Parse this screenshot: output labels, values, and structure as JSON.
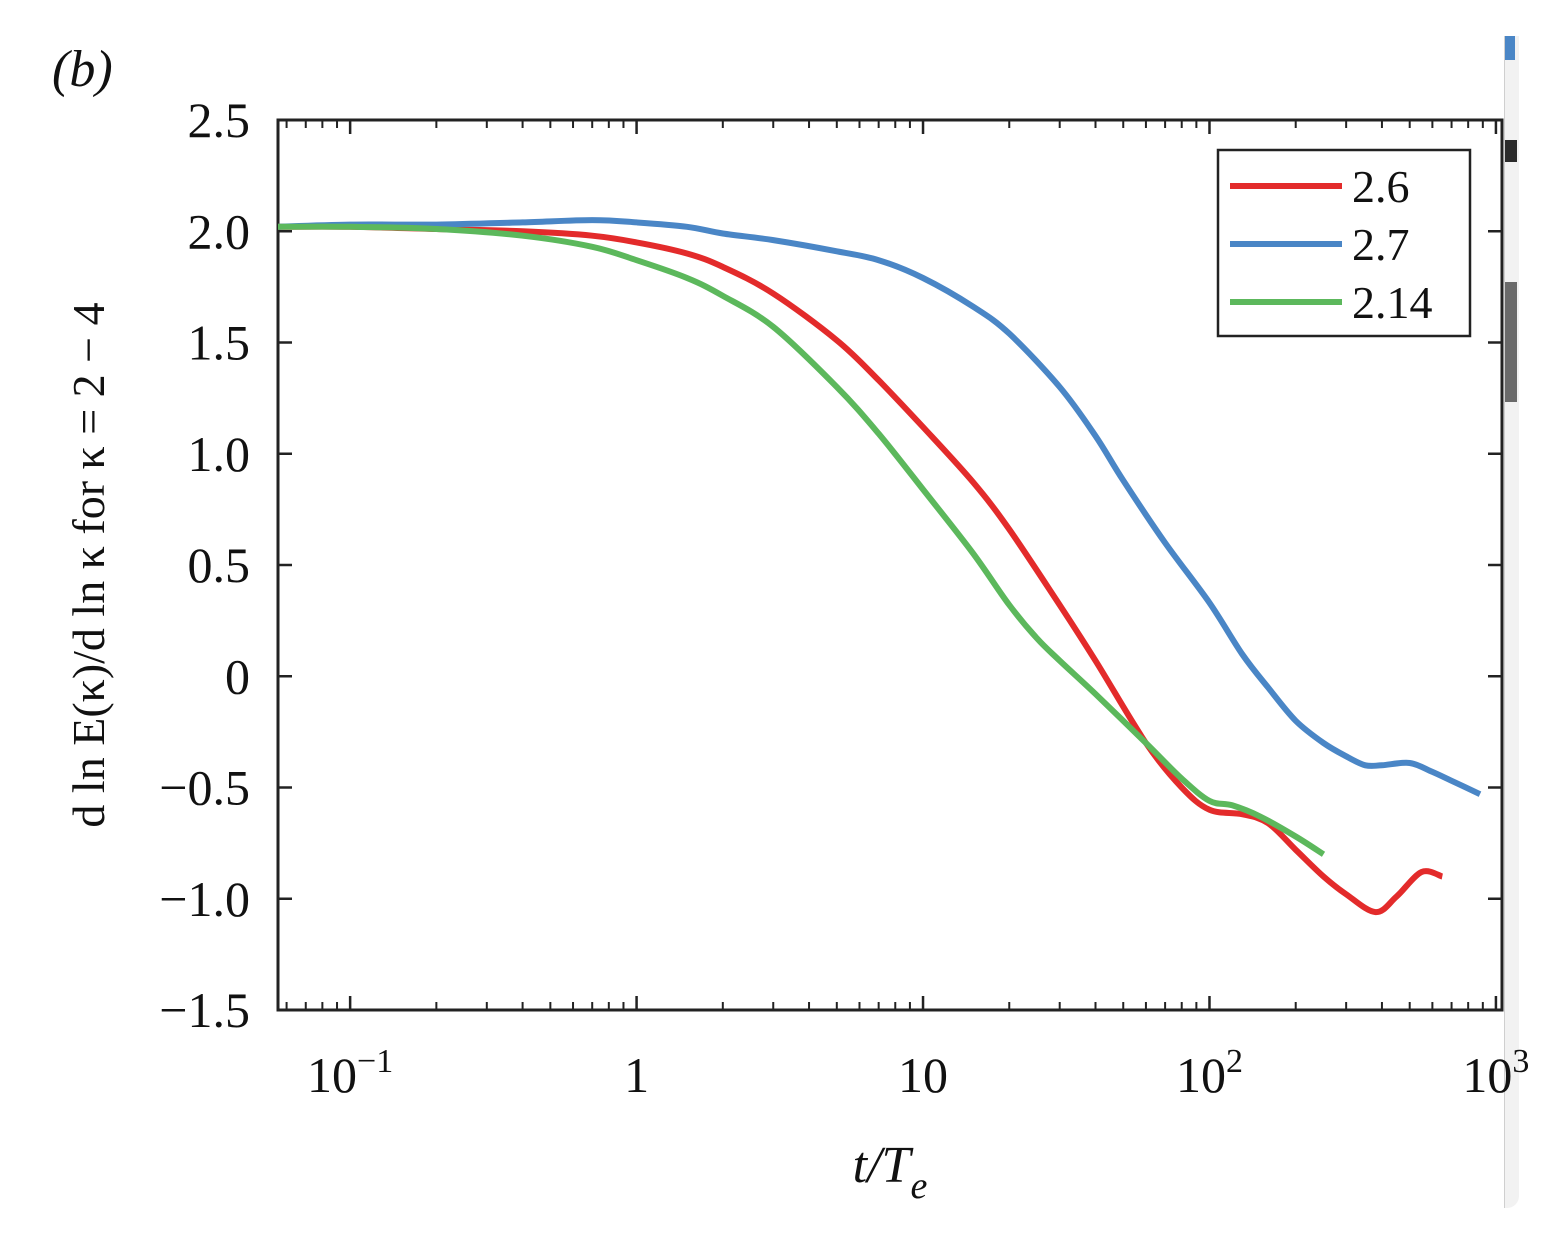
{
  "panel_label": "(b)",
  "colors": {
    "axis": "#222222",
    "series_2_6": "#e32b2b",
    "series_2_7": "#4a86c6",
    "series_2_14": "#5cb85c"
  },
  "chart_data": {
    "type": "line",
    "title": "",
    "xlabel": "t/T_e",
    "ylabel": "d ln E(κ)/d ln κ for κ = 2 − 4",
    "x_scale": "log",
    "xlim": [
      0.056,
      1050
    ],
    "ylim": [
      -1.5,
      2.5
    ],
    "x_ticks": [
      {
        "value": 0.1,
        "base": "10",
        "exp": "−1"
      },
      {
        "value": 1,
        "base": "1",
        "exp": ""
      },
      {
        "value": 10,
        "base": "10",
        "exp": ""
      },
      {
        "value": 100,
        "base": "10",
        "exp": "2"
      },
      {
        "value": 1000,
        "base": "10",
        "exp": "3"
      }
    ],
    "y_ticks": [
      {
        "value": 2.5,
        "label": "2.5"
      },
      {
        "value": 2.0,
        "label": "2.0"
      },
      {
        "value": 1.5,
        "label": "1.5"
      },
      {
        "value": 1.0,
        "label": "1.0"
      },
      {
        "value": 0.5,
        "label": "0.5"
      },
      {
        "value": 0,
        "label": "0"
      },
      {
        "value": -0.5,
        "label": "−0.5"
      },
      {
        "value": -1.0,
        "label": "−1.0"
      },
      {
        "value": -1.5,
        "label": "−1.5"
      }
    ],
    "grid": false,
    "legend_position": "top-right",
    "series": [
      {
        "name": "2.6",
        "color": "#e32b2b",
        "x": [
          0.056,
          0.1,
          0.2,
          0.4,
          0.7,
          1,
          1.5,
          2,
          3,
          5,
          7,
          10,
          15,
          20,
          30,
          40,
          60,
          80,
          100,
          130,
          160,
          200,
          250,
          300,
          380,
          450,
          550,
          650
        ],
        "y": [
          2.02,
          2.02,
          2.01,
          2.0,
          1.98,
          1.95,
          1.9,
          1.84,
          1.72,
          1.51,
          1.33,
          1.12,
          0.87,
          0.66,
          0.32,
          0.07,
          -0.3,
          -0.5,
          -0.6,
          -0.62,
          -0.66,
          -0.78,
          -0.9,
          -0.98,
          -1.06,
          -0.99,
          -0.88,
          -0.9
        ]
      },
      {
        "name": "2.7",
        "color": "#4a86c6",
        "x": [
          0.056,
          0.1,
          0.2,
          0.4,
          0.7,
          1,
          1.5,
          2,
          3,
          5,
          7,
          10,
          15,
          20,
          30,
          40,
          50,
          70,
          100,
          130,
          160,
          200,
          250,
          300,
          350,
          400,
          500,
          600,
          700,
          880
        ],
        "y": [
          2.02,
          2.03,
          2.03,
          2.04,
          2.05,
          2.04,
          2.02,
          1.99,
          1.96,
          1.91,
          1.87,
          1.79,
          1.66,
          1.54,
          1.3,
          1.08,
          0.88,
          0.6,
          0.33,
          0.1,
          -0.05,
          -0.2,
          -0.3,
          -0.36,
          -0.4,
          -0.4,
          -0.39,
          -0.43,
          -0.47,
          -0.53
        ]
      },
      {
        "name": "2.14",
        "color": "#5cb85c",
        "x": [
          0.056,
          0.1,
          0.2,
          0.4,
          0.7,
          1,
          1.5,
          2,
          3,
          5,
          7,
          10,
          15,
          20,
          25,
          30,
          40,
          60,
          80,
          100,
          120,
          150,
          200,
          250
        ],
        "y": [
          2.02,
          2.02,
          2.01,
          1.98,
          1.93,
          1.87,
          1.79,
          1.71,
          1.57,
          1.3,
          1.09,
          0.84,
          0.55,
          0.32,
          0.17,
          0.07,
          -0.08,
          -0.3,
          -0.46,
          -0.56,
          -0.58,
          -0.63,
          -0.72,
          -0.8
        ]
      }
    ]
  }
}
